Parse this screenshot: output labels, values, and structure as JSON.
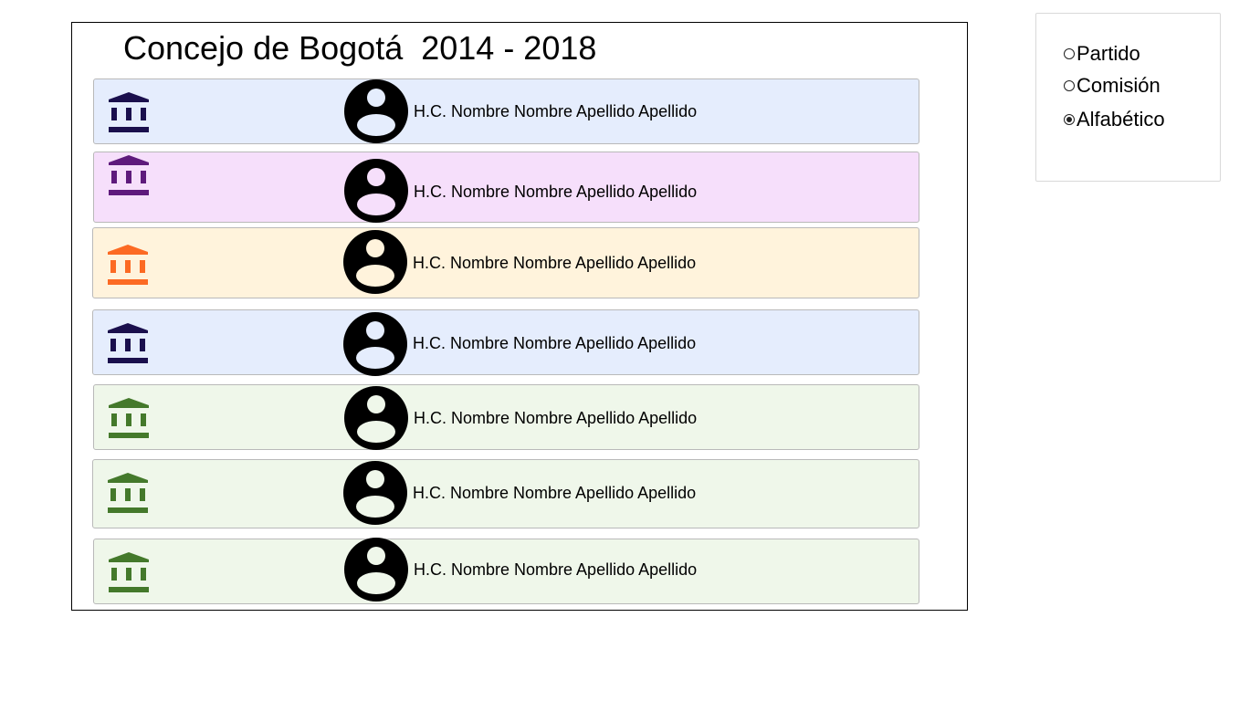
{
  "header": {
    "title": "Concejo de Bogotá  2014 - 2018"
  },
  "councillors": [
    {
      "name": "H.C. Nombre Nombre Apellido Apellido",
      "party_color": "#1a0f4d",
      "row_bg": "#e5edfd",
      "avatar_fill": "#e5edfd"
    },
    {
      "name": "H.C. Nombre Nombre Apellido Apellido",
      "party_color": "#5e1a7c",
      "row_bg": "#f6dffb",
      "avatar_fill": "#f6dffb"
    },
    {
      "name": "H.C. Nombre Nombre Apellido Apellido",
      "party_color": "#fc6a23",
      "row_bg": "#fff3dc",
      "avatar_fill": "#fff3dc"
    },
    {
      "name": "H.C. Nombre Nombre Apellido Apellido",
      "party_color": "#1a0f4d",
      "row_bg": "#e5edfd",
      "avatar_fill": "#e5edfd"
    },
    {
      "name": "H.C. Nombre Nombre Apellido Apellido",
      "party_color": "#44792b",
      "row_bg": "#eff7ea",
      "avatar_fill": "#eff7ea"
    },
    {
      "name": "H.C. Nombre Nombre Apellido Apellido",
      "party_color": "#44792b",
      "row_bg": "#eff7ea",
      "avatar_fill": "#eff7ea"
    },
    {
      "name": "H.C. Nombre Nombre Apellido Apellido",
      "party_color": "#44792b",
      "row_bg": "#eff7ea",
      "avatar_fill": "#eff7ea"
    }
  ],
  "icons": {
    "party": "institution-icon",
    "person": "person-avatar-icon"
  },
  "sort_options": [
    {
      "label": "Partido",
      "checked": false
    },
    {
      "label": "Comisión",
      "checked": false
    },
    {
      "label": "Alfabético",
      "checked": true
    }
  ]
}
